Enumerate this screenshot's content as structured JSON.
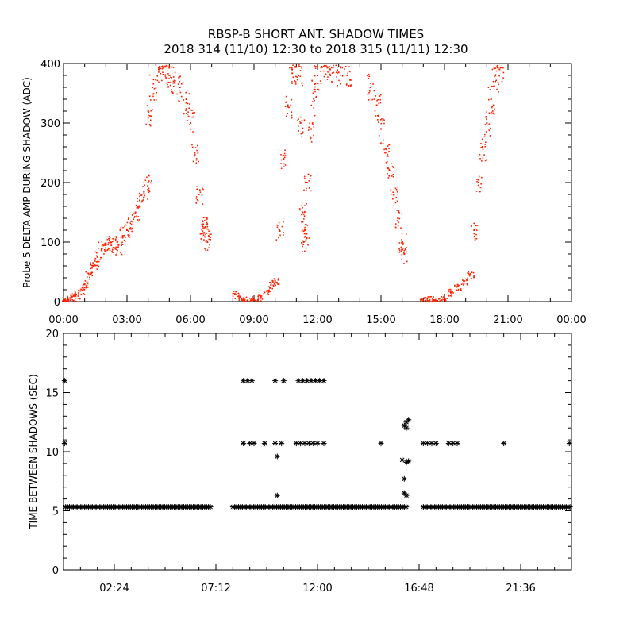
{
  "title_line1": "RBSP-B SHORT ANT. SHADOW TIMES",
  "title_line2": "2018 314 (11/10) 12:30 to 2018 315 (11/11) 12:30",
  "chart_data": [
    {
      "type": "scatter",
      "ylabel": "Probe 5 DELTA AMP DURING SHADOW (ADC)",
      "xlabel": "",
      "x_unit": "hours",
      "xlim": [
        0,
        24
      ],
      "ylim": [
        0,
        400
      ],
      "x_tick_labels": [
        "00:00",
        "03:00",
        "06:00",
        "09:00",
        "12:00",
        "15:00",
        "18:00",
        "21:00",
        "00:00"
      ],
      "y_tick_labels": [
        "0",
        "100",
        "200",
        "300",
        "400"
      ],
      "marker_color": "#ff2200",
      "series": [
        {
          "points": [
            [
              0.05,
              2
            ],
            [
              0.2,
              5
            ],
            [
              0.4,
              8
            ],
            [
              0.6,
              12
            ],
            [
              0.8,
              18
            ],
            [
              1.0,
              30
            ],
            [
              1.2,
              45
            ],
            [
              1.4,
              60
            ],
            [
              1.6,
              75
            ],
            [
              1.8,
              88
            ],
            [
              2.0,
              95
            ],
            [
              2.2,
              100
            ],
            [
              2.4,
              90
            ],
            [
              2.6,
              95
            ],
            [
              2.8,
              110
            ],
            [
              3.0,
              120
            ],
            [
              3.2,
              135
            ],
            [
              3.4,
              150
            ],
            [
              3.6,
              170
            ],
            [
              3.8,
              185
            ],
            [
              4.0,
              200
            ],
            [
              4.0,
              320
            ],
            [
              4.2,
              360
            ],
            [
              4.5,
              390
            ],
            [
              4.8,
              395
            ],
            [
              5.0,
              380
            ],
            [
              5.2,
              370
            ],
            [
              5.5,
              360
            ],
            [
              5.8,
              340
            ],
            [
              6.0,
              300
            ],
            [
              6.2,
              250
            ],
            [
              6.4,
              180
            ],
            [
              6.6,
              130
            ],
            [
              6.8,
              100
            ],
            [
              6.6,
              115
            ],
            [
              6.7,
              125
            ],
            [
              8.1,
              12
            ],
            [
              8.4,
              4
            ],
            [
              8.7,
              2
            ],
            [
              9.0,
              3
            ],
            [
              9.3,
              8
            ],
            [
              9.6,
              18
            ],
            [
              9.8,
              28
            ],
            [
              10.0,
              35
            ],
            [
              10.2,
              120
            ],
            [
              10.4,
              240
            ],
            [
              10.6,
              330
            ],
            [
              10.8,
              390
            ],
            [
              11.1,
              380
            ],
            [
              11.2,
              300
            ],
            [
              11.3,
              150
            ],
            [
              11.35,
              100
            ],
            [
              11.4,
              120
            ],
            [
              11.5,
              200
            ],
            [
              11.7,
              290
            ],
            [
              11.8,
              350
            ],
            [
              12.0,
              380
            ],
            [
              12.3,
              395
            ],
            [
              12.6,
              390
            ],
            [
              13.0,
              385
            ],
            [
              13.4,
              380
            ],
            [
              14.5,
              360
            ],
            [
              14.8,
              330
            ],
            [
              15.0,
              290
            ],
            [
              15.2,
              250
            ],
            [
              15.4,
              220
            ],
            [
              15.6,
              180
            ],
            [
              15.8,
              140
            ],
            [
              16.0,
              100
            ],
            [
              16.1,
              80
            ],
            [
              17.0,
              2
            ],
            [
              17.3,
              3
            ],
            [
              17.6,
              2
            ],
            [
              18.0,
              6
            ],
            [
              18.3,
              15
            ],
            [
              18.6,
              25
            ],
            [
              18.9,
              35
            ],
            [
              19.2,
              45
            ],
            [
              19.4,
              120
            ],
            [
              19.6,
              200
            ],
            [
              19.8,
              260
            ],
            [
              20.0,
              300
            ],
            [
              20.2,
              340
            ],
            [
              20.4,
              370
            ],
            [
              20.6,
              390
            ]
          ]
        }
      ]
    },
    {
      "type": "scatter",
      "ylabel": "TIME BETWEEN SHADOWS (SEC)",
      "xlabel": "",
      "x_unit": "hours",
      "xlim": [
        0,
        24
      ],
      "ylim": [
        0,
        20
      ],
      "x_tick_labels": [
        "02:24",
        "07:12",
        "12:00",
        "16:48",
        "21:36"
      ],
      "y_tick_labels": [
        "0",
        "5",
        "10",
        "15",
        "20"
      ],
      "marker": "*",
      "baseline": {
        "y": 5.33,
        "segments": [
          [
            0.1,
            7.0
          ],
          [
            8.0,
            16.2
          ],
          [
            17.0,
            24.0
          ]
        ]
      },
      "points": [
        [
          0.05,
          16.0
        ],
        [
          0.05,
          10.7
        ],
        [
          8.5,
          16.0
        ],
        [
          8.7,
          16.0
        ],
        [
          8.9,
          16.0
        ],
        [
          8.5,
          10.7
        ],
        [
          8.8,
          10.7
        ],
        [
          9.0,
          10.7
        ],
        [
          9.5,
          10.7
        ],
        [
          10.0,
          16.0
        ],
        [
          10.4,
          16.0
        ],
        [
          10.0,
          10.7
        ],
        [
          10.3,
          10.7
        ],
        [
          10.1,
          9.6
        ],
        [
          10.1,
          6.3
        ],
        [
          11.0,
          10.7
        ],
        [
          11.2,
          10.7
        ],
        [
          11.4,
          10.7
        ],
        [
          11.6,
          10.7
        ],
        [
          11.8,
          10.7
        ],
        [
          12.0,
          10.7
        ],
        [
          12.3,
          10.7
        ],
        [
          11.1,
          16.0
        ],
        [
          11.3,
          16.0
        ],
        [
          11.5,
          16.0
        ],
        [
          11.7,
          16.0
        ],
        [
          11.9,
          16.0
        ],
        [
          12.1,
          16.0
        ],
        [
          12.3,
          16.0
        ],
        [
          15.0,
          10.7
        ],
        [
          16.1,
          12.2
        ],
        [
          16.2,
          12.5
        ],
        [
          16.3,
          12.7
        ],
        [
          16.2,
          12.0
        ],
        [
          16.0,
          9.3
        ],
        [
          16.2,
          9.1
        ],
        [
          16.3,
          9.2
        ],
        [
          16.1,
          7.7
        ],
        [
          16.1,
          6.5
        ],
        [
          16.2,
          6.3
        ],
        [
          17.0,
          10.7
        ],
        [
          17.2,
          10.7
        ],
        [
          17.4,
          10.7
        ],
        [
          17.6,
          10.7
        ],
        [
          18.2,
          10.7
        ],
        [
          18.4,
          10.7
        ],
        [
          18.6,
          10.7
        ],
        [
          20.8,
          10.7
        ],
        [
          23.9,
          10.7
        ]
      ]
    }
  ]
}
